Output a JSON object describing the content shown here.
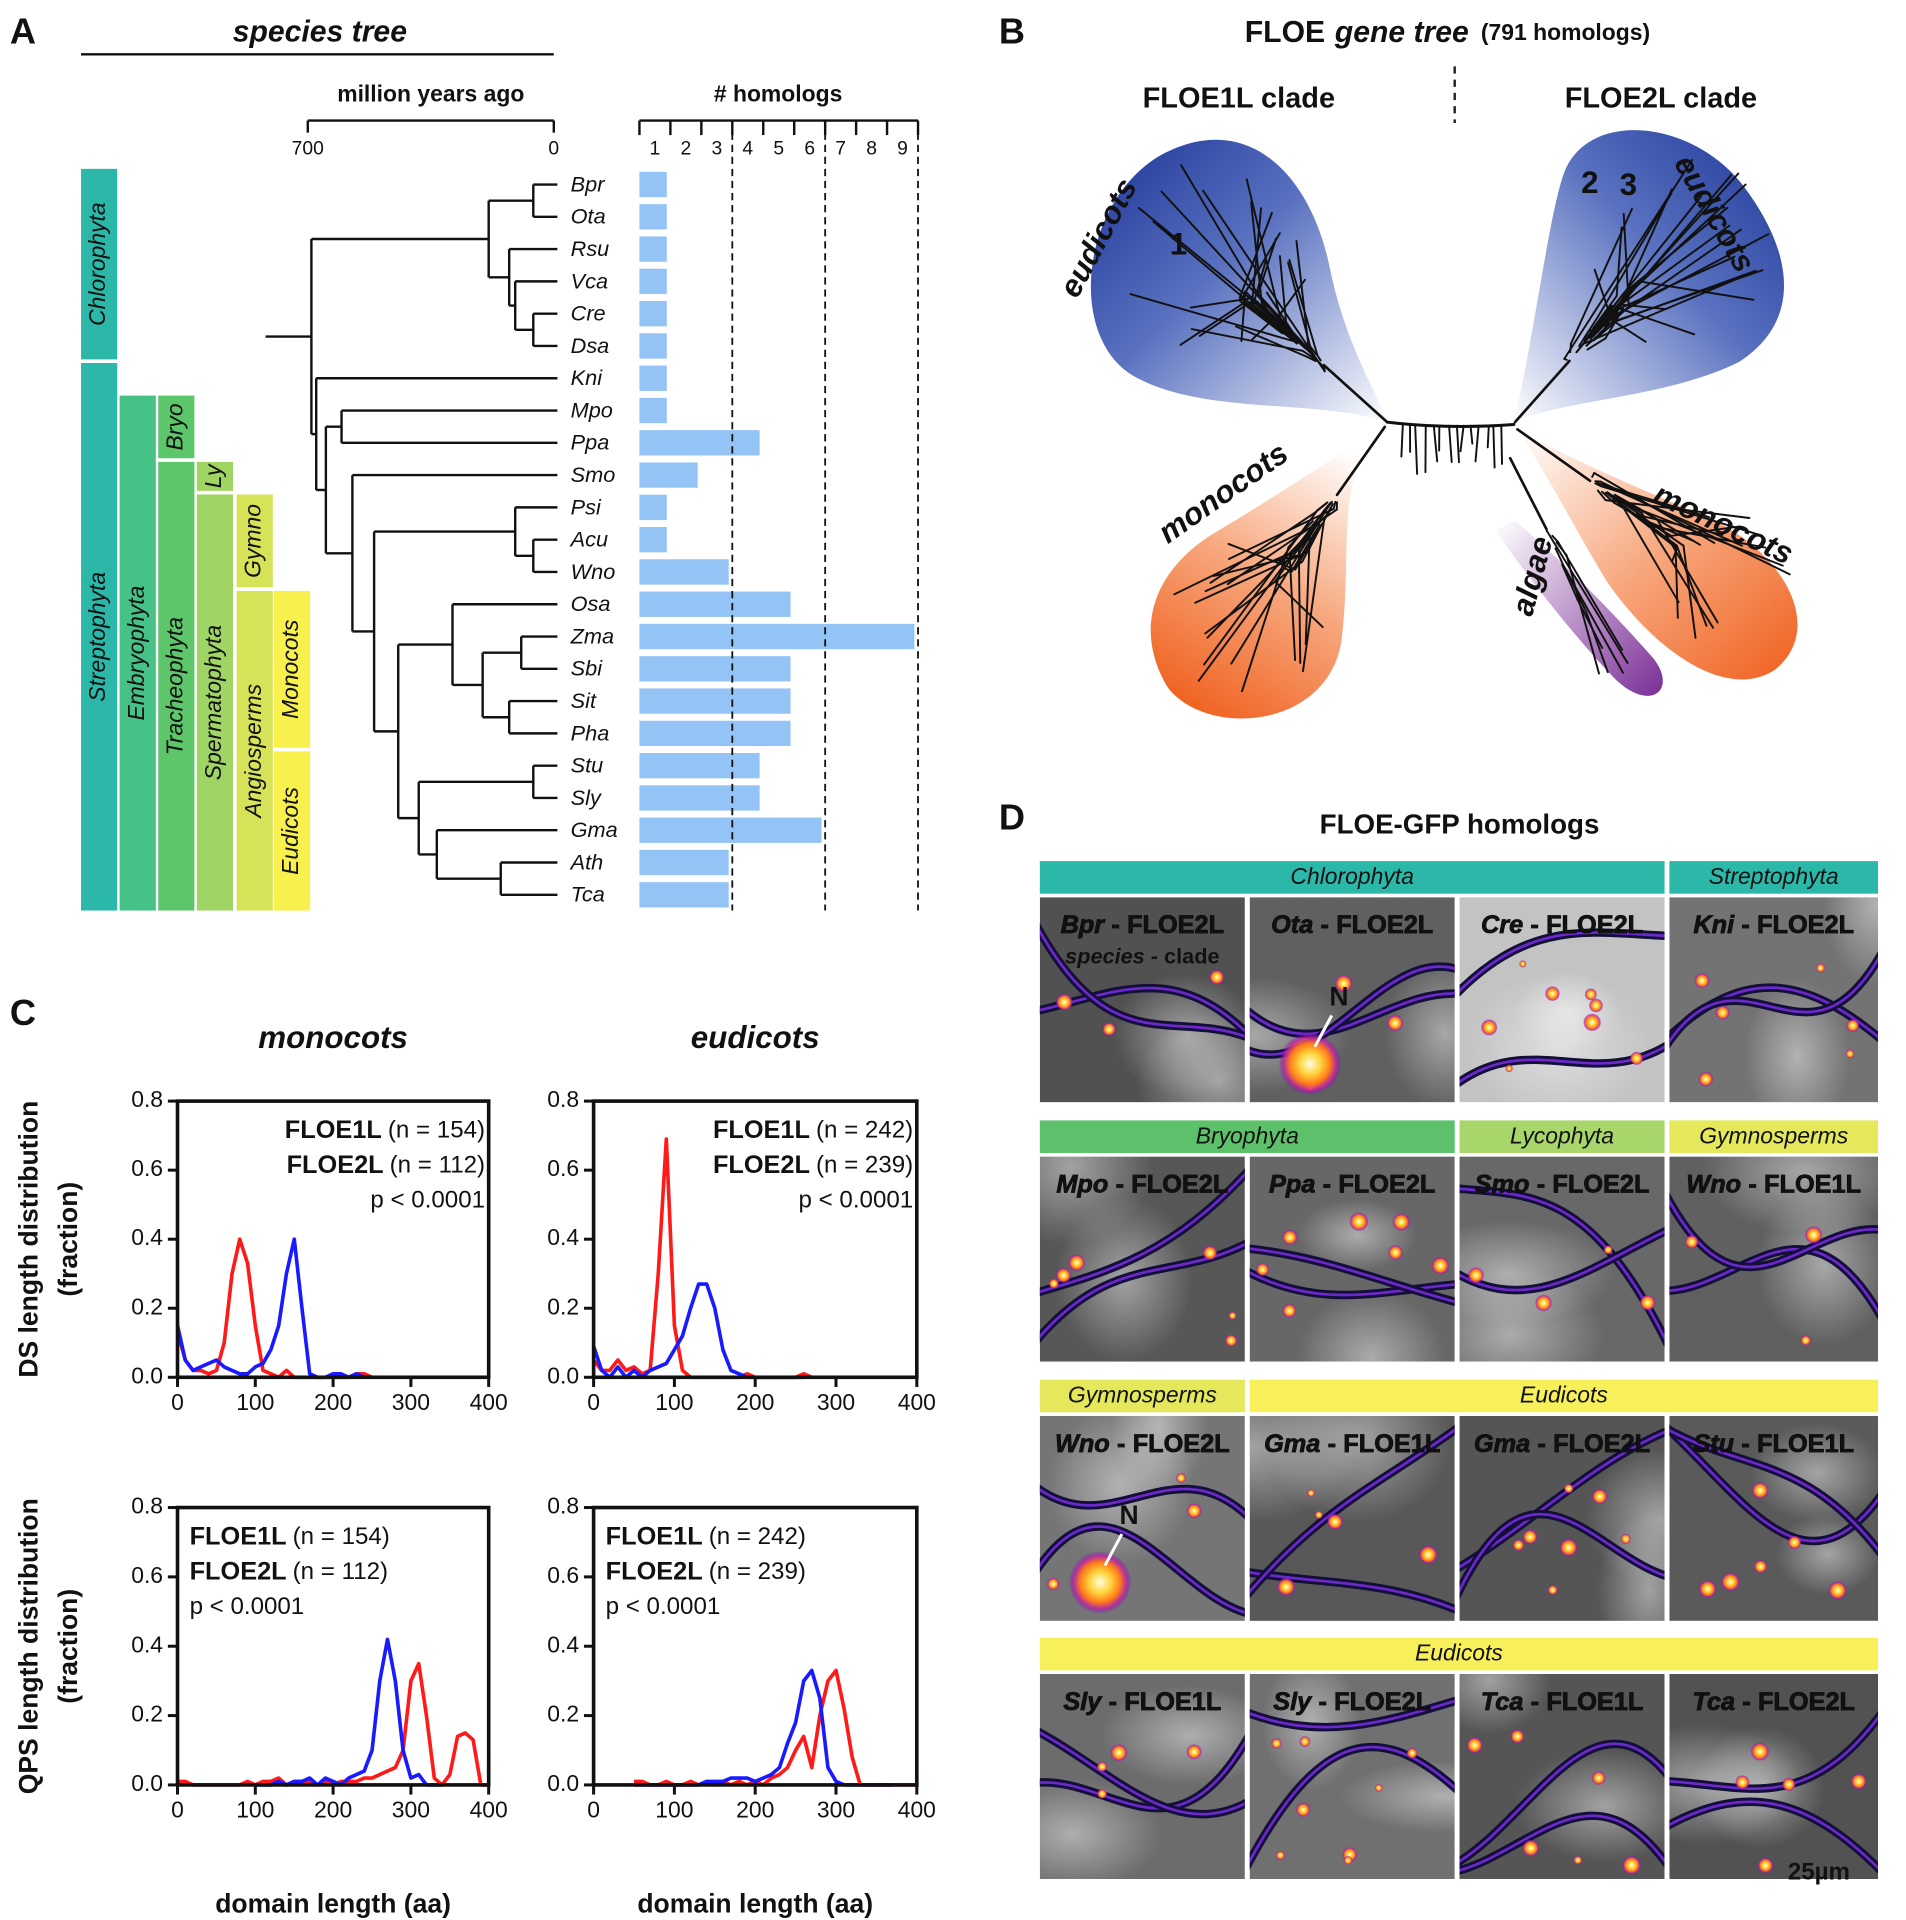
{
  "panel_labels": [
    "A",
    "B",
    "C",
    "D"
  ],
  "panel_a": {
    "title": "species tree",
    "time_axis": {
      "label": "million years ago",
      "lim": [
        700,
        0
      ],
      "ticks": [
        700,
        0
      ]
    },
    "clades": [
      {
        "label": "Chlorophyta",
        "color": "#2bb8a8"
      },
      {
        "label": "Streptophyta",
        "color": "#2bb8a8"
      },
      {
        "label": "Embryophyta",
        "color": "#47c287"
      },
      {
        "label": "Bryo",
        "color": "#5ec66a"
      },
      {
        "label": "Tracheophyta",
        "color": "#5ec66a"
      },
      {
        "label": "Ly",
        "color": "#a0d465"
      },
      {
        "label": "Spermatophyta",
        "color": "#a0d465"
      },
      {
        "label": "Gymno",
        "color": "#d6e358"
      },
      {
        "label": "Angiosperms",
        "color": "#d6e358"
      },
      {
        "label": "Monocots",
        "color": "#f8f04c"
      },
      {
        "label": "Eudicots",
        "color": "#f8f04c"
      }
    ]
  },
  "panel_b": {
    "title_parts": [
      "FLOE",
      "gene tree",
      "(791 homologs)"
    ],
    "clade_labels": [
      "FLOE1L clade",
      "FLOE2L clade"
    ],
    "groups": [
      {
        "label": "eudicots",
        "color": "#23399a"
      },
      {
        "label": "monocots",
        "color": "#f26a2a"
      },
      {
        "label": "eudicots",
        "color": "#23399a"
      },
      {
        "label": "monocots",
        "color": "#f26a2a"
      },
      {
        "label": "algae",
        "color": "#8a3da0"
      }
    ],
    "markers": [
      "1",
      "2",
      "3"
    ]
  },
  "panel_d": {
    "title": "FLOE-GFP homologs",
    "separator": "-",
    "scale_bar": "25µm",
    "rows": [
      {
        "groups": [
          {
            "label": "Chlorophyta",
            "color": "#2bb8a8",
            "cells": [
              {
                "species": "Bpr",
                "clade": "FLOE2L",
                "note": [
                  "species",
                  "clade"
                ]
              },
              {
                "species": "Ota",
                "clade": "FLOE2L",
                "annotation": "N"
              },
              {
                "species": "Cre",
                "clade": "FLOE2L"
              }
            ]
          },
          {
            "label": "Streptophyta",
            "color": "#2bb8a8",
            "cells": [
              {
                "species": "Kni",
                "clade": "FLOE2L"
              }
            ]
          }
        ]
      },
      {
        "groups": [
          {
            "label": "Bryophyta",
            "color": "#5cc16a",
            "cells": [
              {
                "species": "Mpo",
                "clade": "FLOE2L"
              },
              {
                "species": "Ppa",
                "clade": "FLOE2L"
              }
            ]
          },
          {
            "label": "Lycophyta",
            "color": "#a8d66b",
            "cells": [
              {
                "species": "Smo",
                "clade": "FLOE2L"
              }
            ]
          },
          {
            "label": "Gymnosperms",
            "color": "#e4e85a",
            "cells": [
              {
                "species": "Wno",
                "clade": "FLOE1L"
              }
            ]
          }
        ]
      },
      {
        "groups": [
          {
            "label": "Gymnosperms",
            "color": "#e4e85a",
            "cells": [
              {
                "species": "Wno",
                "clade": "FLOE2L",
                "annotation": "N"
              }
            ]
          },
          {
            "label": "Eudicots",
            "color": "#f8f05a",
            "cells": [
              {
                "species": "Gma",
                "clade": "FLOE1L"
              },
              {
                "species": "Gma",
                "clade": "FLOE2L"
              },
              {
                "species": "Stu",
                "clade": "FLOE1L"
              }
            ]
          }
        ]
      },
      {
        "groups": [
          {
            "label": "Eudicots",
            "color": "#f8f05a",
            "cells": [
              {
                "species": "Sly",
                "clade": "FLOE1L"
              },
              {
                "species": "Sly",
                "clade": "FLOE2L"
              },
              {
                "species": "Tca",
                "clade": "FLOE1L"
              },
              {
                "species": "Tca",
                "clade": "FLOE2L"
              }
            ]
          }
        ]
      }
    ]
  },
  "chart_data": [
    {
      "type": "bar",
      "orientation": "horizontal",
      "title": "# homologs",
      "categories": [
        "Bpr",
        "Ota",
        "Rsu",
        "Vca",
        "Cre",
        "Dsa",
        "Kni",
        "Mpo",
        "Ppa",
        "Smo",
        "Psi",
        "Acu",
        "Wno",
        "Osa",
        "Zma",
        "Sbi",
        "Sit",
        "Pha",
        "Stu",
        "Sly",
        "Gma",
        "Ath",
        "Tca"
      ],
      "values": [
        1,
        1,
        1,
        1,
        1,
        1,
        1,
        1,
        4,
        2,
        1,
        1,
        3,
        5,
        9,
        5,
        5,
        5,
        4,
        4,
        6,
        3,
        3
      ],
      "color": "#94c3f6",
      "xlim": [
        0,
        9
      ],
      "xticks": [
        1,
        2,
        3,
        4,
        5,
        6,
        7,
        8,
        9
      ],
      "reference_lines": [
        3,
        6,
        9
      ]
    },
    {
      "type": "line",
      "title": "monocots",
      "ylabel": [
        "DS length distribution",
        "(fraction)"
      ],
      "x": [
        0,
        10,
        20,
        30,
        40,
        50,
        60,
        70,
        80,
        90,
        100,
        110,
        120,
        130,
        140,
        150,
        160,
        170,
        180,
        190,
        200,
        210,
        220,
        230,
        240,
        250,
        260,
        270,
        280,
        290,
        300,
        310,
        320,
        330,
        340,
        350,
        360,
        370,
        380,
        390,
        400
      ],
      "series": [
        {
          "name": "FLOE1L",
          "n_label": "(n = 154)",
          "color": "#ff1a1a",
          "values": [
            0.13,
            0.05,
            0.02,
            0.02,
            0.01,
            0.02,
            0.1,
            0.3,
            0.4,
            0.33,
            0.15,
            0.02,
            0.01,
            0,
            0.02,
            0,
            0,
            0,
            0,
            0,
            0,
            0,
            0,
            0.01,
            0.01,
            0,
            null,
            null,
            null,
            null,
            null,
            null,
            null,
            null,
            null,
            null,
            null,
            null,
            null,
            null,
            null
          ]
        },
        {
          "name": "FLOE2L",
          "n_label": "(n = 112)",
          "color": "#1a1aff",
          "values": [
            0.15,
            0.05,
            0.02,
            0.03,
            0.04,
            0.05,
            0.03,
            0.02,
            0.01,
            0.01,
            0.03,
            0.04,
            0.08,
            0.15,
            0.3,
            0.4,
            0.2,
            0.01,
            0,
            0,
            0.01,
            0.01,
            0,
            0.01,
            0,
            null,
            null,
            null,
            null,
            null,
            null,
            null,
            null,
            null,
            null,
            null,
            null,
            null,
            null,
            null,
            null
          ]
        }
      ],
      "annotation": "p < 0.0001",
      "legend": "upper right",
      "xlim": [
        0,
        400
      ],
      "ylim": [
        0,
        0.8
      ],
      "xticks": [
        0,
        100,
        200,
        300,
        400
      ],
      "yticks": [
        {
          "value": 0,
          "label": "0.0"
        },
        0.2,
        0.4,
        0.6,
        0.8
      ]
    },
    {
      "type": "line",
      "title": "eudicots",
      "x": [
        0,
        10,
        20,
        30,
        40,
        50,
        60,
        70,
        80,
        90,
        100,
        110,
        120,
        130,
        140,
        150,
        160,
        170,
        180,
        190,
        200,
        210,
        220,
        230,
        240,
        250,
        260,
        270,
        280,
        290,
        300,
        310,
        320,
        330,
        340,
        350,
        360,
        370,
        380,
        390,
        400
      ],
      "series": [
        {
          "name": "FLOE1L",
          "n_label": "(n = 242)",
          "color": "#ff1a1a",
          "values": [
            0.05,
            0.02,
            0.02,
            0.05,
            0.02,
            0.03,
            0.01,
            0.02,
            0.3,
            0.69,
            0.15,
            0.02,
            0,
            0,
            0,
            0,
            0,
            0,
            0,
            0.01,
            0,
            0,
            0,
            0,
            0,
            0,
            0.01,
            0,
            null,
            null,
            null,
            null,
            null,
            null,
            null,
            null,
            null,
            null,
            null,
            null,
            null
          ]
        },
        {
          "name": "FLOE2L",
          "n_label": "(n = 239)",
          "color": "#1a1aff",
          "values": [
            0.09,
            0.02,
            0,
            0.03,
            0,
            0.02,
            0,
            0.02,
            0.03,
            0.04,
            0.08,
            0.12,
            0.2,
            0.27,
            0.27,
            0.2,
            0.08,
            0.02,
            0.01,
            0,
            0,
            0,
            0,
            0,
            0,
            0,
            0,
            null,
            null,
            null,
            null,
            null,
            null,
            null,
            null,
            null,
            null,
            null,
            null,
            null,
            null
          ]
        }
      ],
      "annotation": "p < 0.0001",
      "legend": "upper right",
      "xlim": [
        0,
        400
      ],
      "ylim": [
        0,
        0.8
      ],
      "xticks": [
        0,
        100,
        200,
        300,
        400
      ],
      "yticks": [
        {
          "value": 0,
          "label": "0.0"
        },
        0.2,
        0.4,
        0.6,
        0.8
      ]
    },
    {
      "type": "line",
      "ylabel": [
        "QPS length distribution",
        "(fraction)"
      ],
      "xlabel": "domain length (aa)",
      "x": [
        0,
        10,
        20,
        30,
        40,
        50,
        60,
        70,
        80,
        90,
        100,
        110,
        120,
        130,
        140,
        150,
        160,
        170,
        180,
        190,
        200,
        210,
        220,
        230,
        240,
        250,
        260,
        270,
        280,
        290,
        300,
        310,
        320,
        330,
        340,
        350,
        360,
        370,
        380,
        390,
        400
      ],
      "series": [
        {
          "name": "FLOE1L",
          "n_label": "(n = 154)",
          "color": "#ff1a1a",
          "values": [
            0.01,
            0.01,
            0,
            0,
            0,
            0,
            0,
            0,
            0,
            0.01,
            0,
            0.01,
            0.01,
            0.02,
            0,
            0.01,
            0.01,
            0.01,
            0,
            0.01,
            0,
            0.01,
            0.01,
            0.01,
            0.02,
            0.02,
            0.03,
            0.04,
            0.05,
            0.1,
            0.3,
            0.35,
            0.2,
            0.02,
            0,
            0.03,
            0.14,
            0.15,
            0.13,
            0,
            0
          ]
        },
        {
          "name": "FLOE2L",
          "n_label": "(n = 112)",
          "color": "#1a1aff",
          "values": [
            null,
            null,
            null,
            null,
            null,
            null,
            null,
            null,
            null,
            null,
            0,
            0,
            0,
            0.01,
            0,
            0.01,
            0.01,
            0.02,
            0,
            0.02,
            0.01,
            0,
            0.02,
            0.03,
            0.04,
            0.1,
            0.3,
            0.42,
            0.3,
            0.1,
            0.02,
            0.03,
            0,
            0,
            0,
            null,
            null,
            null,
            null,
            null,
            null
          ]
        }
      ],
      "annotation": "p < 0.0001",
      "legend": "upper left",
      "xlim": [
        0,
        400
      ],
      "ylim": [
        0,
        0.8
      ],
      "xticks": [
        0,
        100,
        200,
        300,
        400
      ],
      "yticks": [
        {
          "value": 0,
          "label": "0.0"
        },
        0.2,
        0.4,
        0.6,
        0.8
      ]
    },
    {
      "type": "line",
      "xlabel": "domain length (aa)",
      "x": [
        0,
        10,
        20,
        30,
        40,
        50,
        60,
        70,
        80,
        90,
        100,
        110,
        120,
        130,
        140,
        150,
        160,
        170,
        180,
        190,
        200,
        210,
        220,
        230,
        240,
        250,
        260,
        270,
        280,
        290,
        300,
        310,
        320,
        330,
        340,
        350,
        360,
        370,
        380,
        390,
        400
      ],
      "series": [
        {
          "name": "FLOE1L",
          "n_label": "(n = 242)",
          "color": "#ff1a1a",
          "values": [
            null,
            null,
            null,
            null,
            null,
            0.01,
            0.01,
            0,
            0,
            0.01,
            0,
            0,
            0.01,
            0,
            0.01,
            0,
            0.01,
            0,
            0.01,
            0,
            0.01,
            0,
            0.02,
            0.03,
            0.05,
            0.1,
            0.14,
            0.05,
            0.2,
            0.3,
            0.33,
            0.22,
            0.08,
            0,
            0,
            0,
            0,
            0,
            0,
            0,
            0
          ]
        },
        {
          "name": "FLOE2L",
          "n_label": "(n = 239)",
          "color": "#1a1aff",
          "values": [
            null,
            null,
            null,
            null,
            null,
            0,
            0,
            0,
            0,
            0,
            0,
            0,
            0,
            0,
            0.01,
            0.01,
            0.01,
            0.02,
            0.02,
            0.02,
            0.01,
            0.02,
            0.03,
            0.05,
            0.12,
            0.18,
            0.3,
            0.33,
            0.25,
            0.05,
            0.01,
            0,
            0,
            0,
            0,
            0,
            0,
            0,
            null,
            null,
            null
          ]
        }
      ],
      "annotation": "p < 0.0001",
      "legend": "upper left",
      "xlim": [
        0,
        400
      ],
      "ylim": [
        0,
        0.8
      ],
      "xticks": [
        0,
        100,
        200,
        300,
        400
      ],
      "yticks": [
        {
          "value": 0,
          "label": "0.0"
        },
        0.2,
        0.4,
        0.6,
        0.8
      ]
    }
  ]
}
